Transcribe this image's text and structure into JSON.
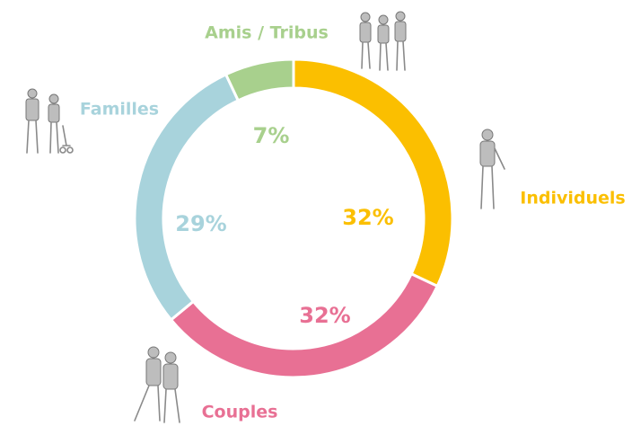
{
  "chart_data": {
    "type": "donut",
    "categories": [
      "Individuels",
      "Couples",
      "Familles",
      "Amis / Tribus"
    ],
    "values": [
      32,
      32,
      29,
      7
    ],
    "value_labels": [
      "32%",
      "32%",
      "29%",
      "7%"
    ],
    "colors": [
      "#fbbf00",
      "#e87094",
      "#a8d3dc",
      "#a8d08d"
    ]
  }
}
